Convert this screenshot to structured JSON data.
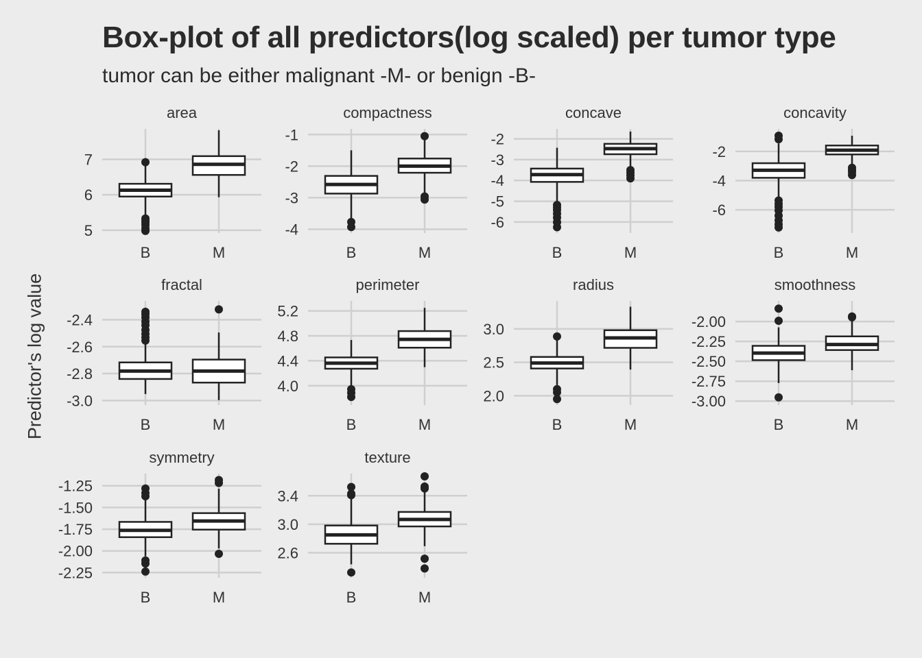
{
  "title": "Box-plot of all predictors(log scaled) per tumor type",
  "subtitle": "tumor can be either malignant -M- or benign -B-",
  "ylabel": "Predictor's log value",
  "colors": {
    "background": "#ececec",
    "grid": "#cfcfcf",
    "box_fill": "#ffffff",
    "ink": "#222222"
  },
  "chart_data": {
    "type": "box",
    "categories": [
      "B",
      "M"
    ],
    "grid": true,
    "facets": [
      {
        "name": "area",
        "yticks": [
          5,
          6,
          7
        ],
        "ytick_labels": [
          "5",
          "6",
          "7"
        ],
        "ylim": [
          4.92,
          7.86
        ],
        "boxes": [
          {
            "category": "B",
            "q1": 5.95,
            "median": 6.13,
            "q3": 6.31,
            "whisker_low": 5.42,
            "whisker_high": 6.86,
            "outliers": [
              6.92,
              5.33,
              5.27,
              5.22,
              5.15,
              5.05,
              4.98
            ]
          },
          {
            "category": "M",
            "q1": 6.56,
            "median": 6.86,
            "q3": 7.09,
            "whisker_low": 5.93,
            "whisker_high": 7.82,
            "outliers": []
          }
        ]
      },
      {
        "name": "compactness",
        "yticks": [
          -4,
          -3,
          -2,
          -1
        ],
        "ytick_labels": [
          "-4",
          "-3",
          "-2",
          "-1"
        ],
        "ylim": [
          -4.12,
          -0.82
        ],
        "boxes": [
          {
            "category": "B",
            "q1": -2.87,
            "median": -2.58,
            "q3": -2.31,
            "whisker_low": -3.69,
            "whisker_high": -1.5,
            "outliers": [
              -3.77,
              -3.93
            ]
          },
          {
            "category": "M",
            "q1": -2.21,
            "median": -2.0,
            "q3": -1.76,
            "whisker_low": -2.9,
            "whisker_high": -1.1,
            "outliers": [
              -1.05,
              -2.96,
              -3.06
            ]
          }
        ]
      },
      {
        "name": "concave",
        "yticks": [
          -6,
          -5,
          -4,
          -3,
          -2
        ],
        "ytick_labels": [
          "-6",
          "-5",
          "-4",
          "-3",
          "-2"
        ],
        "ylim": [
          -6.53,
          -1.52
        ],
        "boxes": [
          {
            "category": "B",
            "q1": -4.07,
            "median": -3.72,
            "q3": -3.43,
            "whisker_low": -5.05,
            "whisker_high": -2.43,
            "outliers": [
              -5.18,
              -5.3,
              -5.42,
              -5.6,
              -5.79,
              -6.01,
              -6.25
            ]
          },
          {
            "category": "M",
            "q1": -2.74,
            "median": -2.47,
            "q3": -2.24,
            "whisker_low": -3.42,
            "whisker_high": -1.65,
            "outliers": [
              -3.5,
              -3.63,
              -3.76,
              -3.9
            ]
          }
        ]
      },
      {
        "name": "concavity",
        "yticks": [
          -6,
          -4,
          -2
        ],
        "ytick_labels": [
          "-6",
          "-4",
          "-2"
        ],
        "ylim": [
          -7.59,
          -0.46
        ],
        "boxes": [
          {
            "category": "B",
            "q1": -3.81,
            "median": -3.29,
            "q3": -2.81,
            "whisker_low": -5.21,
            "whisker_high": -1.46,
            "outliers": [
              -0.93,
              -1.17,
              -5.36,
              -5.6,
              -5.81,
              -6.05,
              -6.4,
              -6.72,
              -7.0,
              -7.21
            ]
          },
          {
            "category": "M",
            "q1": -2.21,
            "median": -1.92,
            "q3": -1.6,
            "whisker_low": -3.02,
            "whisker_high": -0.93,
            "outliers": [
              -3.12,
              -3.28,
              -3.43,
              -3.62
            ]
          }
        ]
      },
      {
        "name": "fractal",
        "yticks": [
          -3.0,
          -2.8,
          -2.6,
          -2.4
        ],
        "ytick_labels": [
          "-3.0",
          "-2.8",
          "-2.6",
          "-2.4"
        ],
        "ylim": [
          -3.034,
          -2.26
        ],
        "boxes": [
          {
            "category": "B",
            "q1": -2.84,
            "median": -2.781,
            "q3": -2.717,
            "whisker_low": -2.952,
            "whisker_high": -2.583,
            "outliers": [
              -2.341,
              -2.359,
              -2.383,
              -2.414,
              -2.441,
              -2.476,
              -2.505,
              -2.531,
              -2.555
            ]
          },
          {
            "category": "M",
            "q1": -2.867,
            "median": -2.781,
            "q3": -2.696,
            "whisker_low": -2.997,
            "whisker_high": -2.495,
            "outliers": [
              -2.323
            ]
          }
        ]
      },
      {
        "name": "perimeter",
        "yticks": [
          4.0,
          4.4,
          4.8,
          5.2
        ],
        "ytick_labels": [
          "4.0",
          "4.4",
          "4.8",
          "5.2"
        ],
        "ylim": [
          3.69,
          5.36
        ],
        "boxes": [
          {
            "category": "B",
            "q1": 4.273,
            "median": 4.361,
            "q3": 4.454,
            "whisker_low": 4.0,
            "whisker_high": 4.733,
            "outliers": [
              3.944,
              3.886,
              3.82
            ]
          },
          {
            "category": "M",
            "q1": 4.61,
            "median": 4.744,
            "q3": 4.876,
            "whisker_low": 4.298,
            "whisker_high": 5.249,
            "outliers": []
          }
        ]
      },
      {
        "name": "radius",
        "yticks": [
          2.0,
          2.5,
          3.0
        ],
        "ytick_labels": [
          "2.0",
          "2.5",
          "3.0"
        ],
        "ylim": [
          1.86,
          3.42
        ],
        "boxes": [
          {
            "category": "B",
            "q1": 2.408,
            "median": 2.49,
            "q3": 2.581,
            "whisker_low": 2.159,
            "whisker_high": 2.847,
            "outliers": [
              2.888,
              2.098,
              2.051,
              1.95
            ]
          },
          {
            "category": "M",
            "q1": 2.717,
            "median": 2.866,
            "q3": 2.981,
            "whisker_low": 2.392,
            "whisker_high": 3.333,
            "outliers": []
          }
        ]
      },
      {
        "name": "smoothness",
        "yticks": [
          -3.0,
          -2.75,
          -2.5,
          -2.25,
          -2.0
        ],
        "ytick_labels": [
          "-3.00",
          "-2.75",
          "-2.50",
          "-2.25",
          "-2.00"
        ],
        "ylim": [
          -3.05,
          -1.74
        ],
        "boxes": [
          {
            "category": "B",
            "q1": -2.485,
            "median": -2.396,
            "q3": -2.305,
            "whisker_low": -2.773,
            "whisker_high": -2.073,
            "outliers": [
              -1.837,
              -1.99,
              -2.953
            ]
          },
          {
            "category": "M",
            "q1": -2.358,
            "median": -2.288,
            "q3": -2.186,
            "whisker_low": -2.611,
            "whisker_high": -1.96,
            "outliers": [
              -1.936,
              -1.946
            ]
          }
        ]
      },
      {
        "name": "symmetry",
        "yticks": [
          -2.25,
          -2.0,
          -1.75,
          -1.5,
          -1.25
        ],
        "ytick_labels": [
          "-2.25",
          "-2.00",
          "-1.75",
          "-1.50",
          "-1.25"
        ],
        "ylim": [
          -2.31,
          -1.11
        ],
        "boxes": [
          {
            "category": "B",
            "q1": -1.842,
            "median": -1.763,
            "q3": -1.666,
            "whisker_low": -2.062,
            "whisker_high": -1.415,
            "outliers": [
              -1.282,
              -1.333,
              -1.371,
              -2.111,
              -2.145,
              -2.238
            ]
          },
          {
            "category": "M",
            "q1": -1.755,
            "median": -1.656,
            "q3": -1.565,
            "whisker_low": -1.972,
            "whisker_high": -1.283,
            "outliers": [
              -1.184,
              -1.218,
              -2.034
            ]
          }
        ]
      },
      {
        "name": "texture",
        "yticks": [
          2.6,
          3.0,
          3.4
        ],
        "ytick_labels": [
          "2.6",
          "3.0",
          "3.4"
        ],
        "ylim": [
          2.25,
          3.71
        ],
        "boxes": [
          {
            "category": "B",
            "q1": 2.727,
            "median": 2.851,
            "q3": 2.983,
            "whisker_low": 2.439,
            "whisker_high": 3.358,
            "outliers": [
              3.408,
              3.429,
              3.523,
              2.325
            ]
          },
          {
            "category": "M",
            "q1": 2.97,
            "median": 3.068,
            "q3": 3.173,
            "whisker_low": 2.693,
            "whisker_high": 3.482,
            "outliers": [
              3.502,
              3.529,
              3.672,
              2.518,
              2.381
            ]
          }
        ]
      }
    ]
  }
}
